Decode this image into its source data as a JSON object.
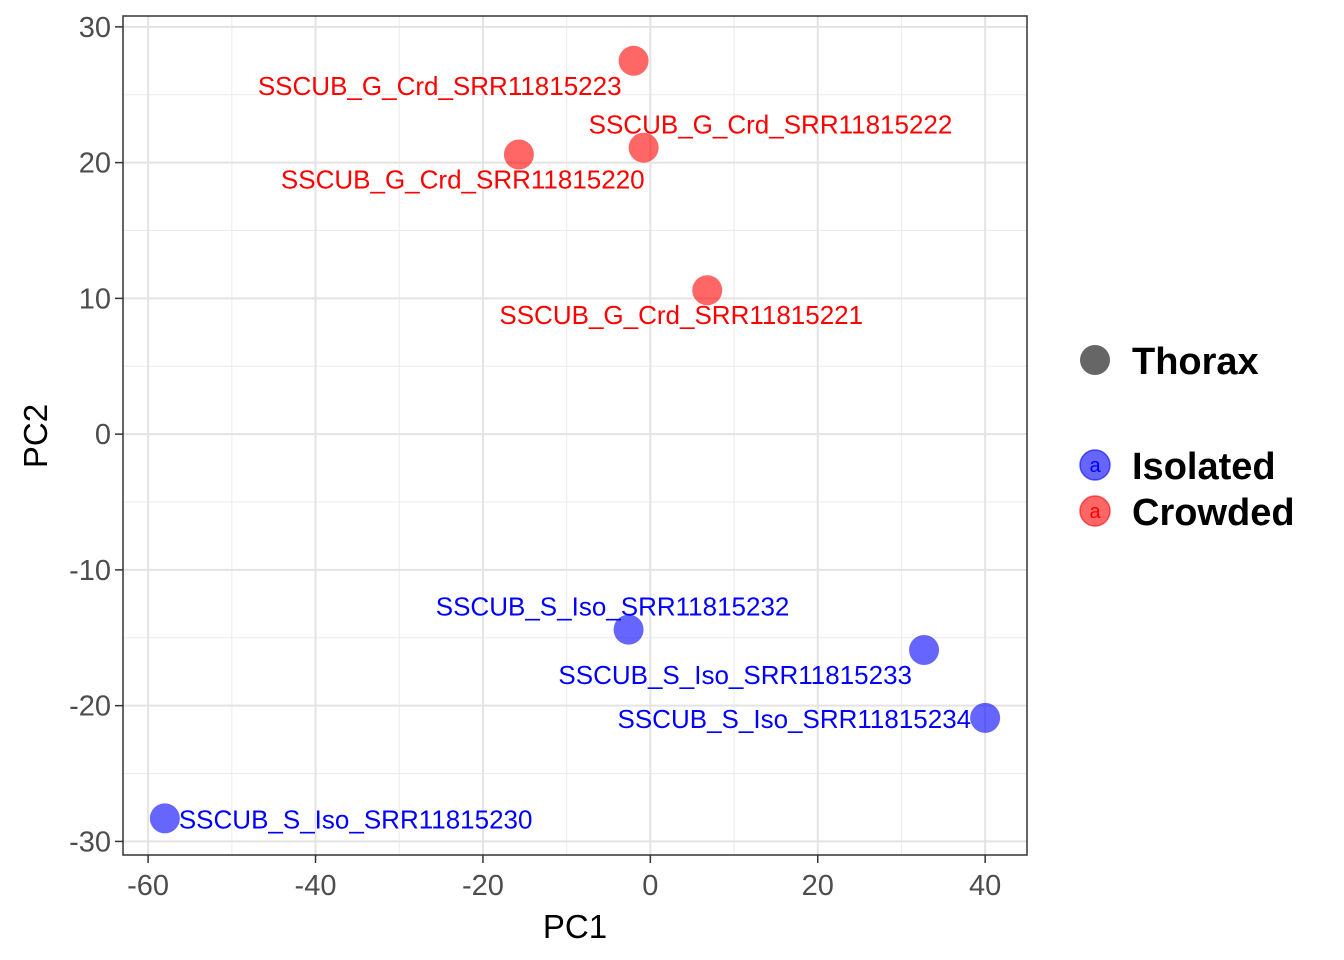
{
  "chart_data": {
    "type": "scatter",
    "title": "",
    "xlabel": "PC1",
    "ylabel": "PC2",
    "xlim": [
      -63,
      45
    ],
    "ylim": [
      -31,
      30.8
    ],
    "x_ticks": [
      -60,
      -40,
      -20,
      0,
      20,
      40
    ],
    "y_ticks": [
      -30,
      -20,
      -10,
      0,
      10,
      20,
      30
    ],
    "x_tick_labels": [
      "-60",
      "-40",
      "-20",
      "0",
      "20",
      "40"
    ],
    "y_tick_labels": [
      "-30",
      "-20",
      "-10",
      "0",
      "10",
      "20",
      "30"
    ],
    "grid": true,
    "legend": {
      "position": "right",
      "shape_title": "Thorax",
      "shape_color": "#666666",
      "groups": [
        {
          "name": "Isolated",
          "color": "#0000FF",
          "glyph": "a"
        },
        {
          "name": "Crowded",
          "color": "#FF0000",
          "glyph": "a"
        }
      ]
    },
    "series": [
      {
        "name": "Crowded",
        "color": "#FF0000",
        "points": [
          {
            "label": "SSCUB_G_Crd_SRR11815223",
            "x": -2,
            "y": 27.5,
            "label_anchor": "below-left"
          },
          {
            "label": "SSCUB_G_Crd_SRR11815222",
            "x": -0.8,
            "y": 21.1,
            "label_anchor": "above-right"
          },
          {
            "label": "SSCUB_G_Crd_SRR11815220",
            "x": -15.7,
            "y": 20.6,
            "label_anchor": "below-right"
          },
          {
            "label": "SSCUB_G_Crd_SRR11815221",
            "x": 6.8,
            "y": 10.6,
            "label_anchor": "below"
          }
        ]
      },
      {
        "name": "Isolated",
        "color": "#0000FF",
        "points": [
          {
            "label": "SSCUB_S_Iso_SRR11815232",
            "x": -2.6,
            "y": -14.4,
            "label_anchor": "above-left"
          },
          {
            "label": "SSCUB_S_Iso_SRR11815233",
            "x": 32.7,
            "y": -15.9,
            "label_anchor": "below-left"
          },
          {
            "label": "SSCUB_S_Iso_SRR11815234",
            "x": 40.0,
            "y": -20.9,
            "label_anchor": "left"
          },
          {
            "label": "SSCUB_S_Iso_SRR11815230",
            "x": -58.0,
            "y": -28.3,
            "label_anchor": "right"
          }
        ]
      }
    ]
  }
}
